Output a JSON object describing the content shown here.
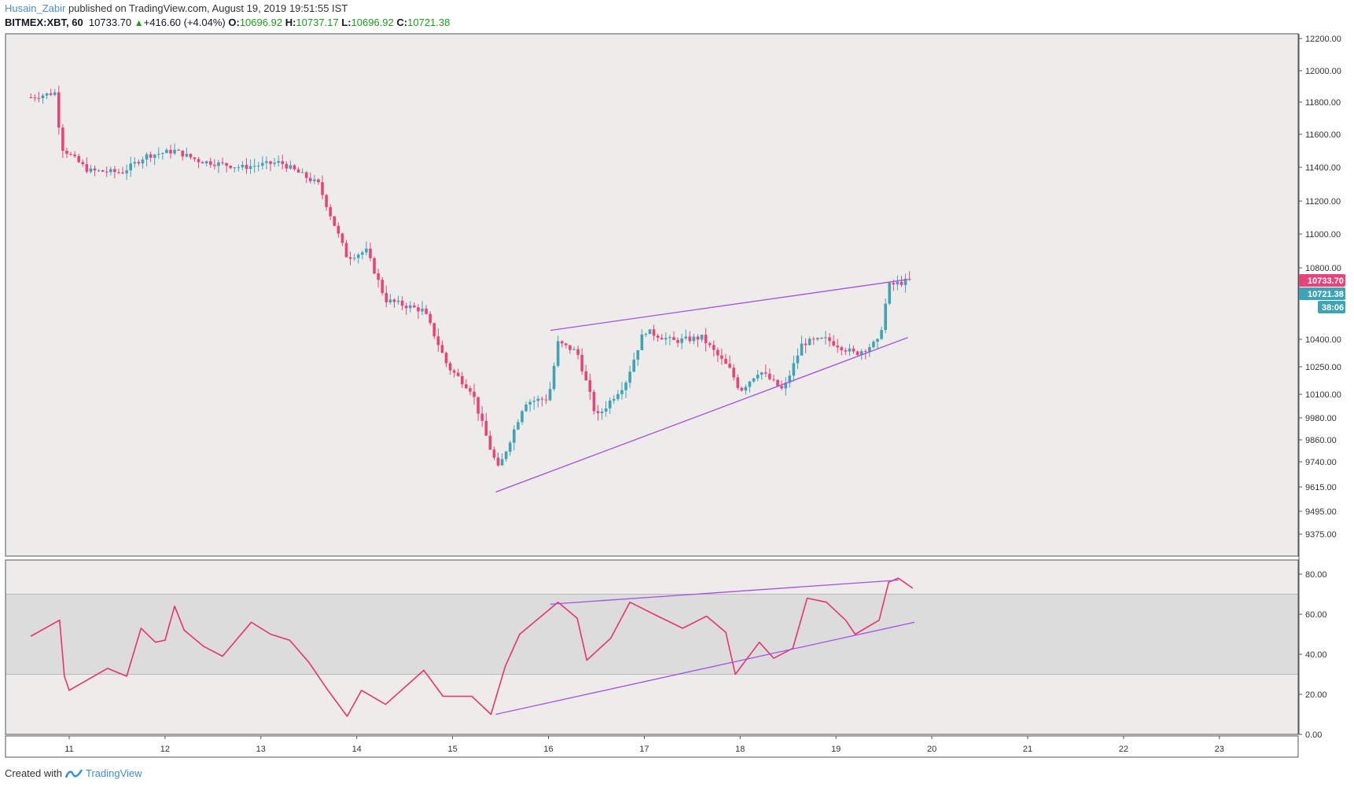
{
  "header": {
    "author": "Husain_Zabir",
    "published": " published on TradingView.com, August 19, 2019 19:51:55 IST",
    "symbol": "BITMEX:XBT, 60",
    "last": "10733.70",
    "change": "+416.60 (+4.04%)",
    "o_label": "O:",
    "o_value": "10696.92",
    "h_label": "H:",
    "h_value": "10737.17",
    "l_label": "L:",
    "l_value": "10696.92",
    "c_label": "C:",
    "c_value": "10721.38"
  },
  "footer": {
    "created_with": "Created with",
    "brand": "TradingView"
  },
  "badges": {
    "last_price": "10733.70",
    "close_price": "10721.38",
    "countdown": "38:06"
  },
  "colors": {
    "up": "#3ea3b5",
    "down": "#e8447a",
    "trendline": "#a550e6",
    "rsi_line": "#e8336f",
    "background": "#eeebeb",
    "rsi_band": "#dcdcdc",
    "badge_last": "#e8447a",
    "badge_close": "#3ea3b5"
  },
  "chart_data": [
    {
      "type": "candlestick",
      "name": "BITMEX:XBT, 60",
      "y_axis_ticks": [
        "12200.00",
        "12000.00",
        "11800.00",
        "11600.00",
        "11400.00",
        "11200.00",
        "11000.00",
        "10800.00",
        "10400.00",
        "10250.00",
        "10100.00",
        "9980.00",
        "9860.00",
        "9740.00",
        "9615.00",
        "9495.00",
        "9375.00"
      ],
      "ylim": [
        9255,
        12200
      ],
      "x_axis_ticks": [
        "11",
        "12",
        "13",
        "14",
        "15",
        "16",
        "17",
        "18",
        "19",
        "20",
        "21",
        "22",
        "23"
      ],
      "price_path_approx": [
        {
          "x": 10.6,
          "y": 11830
        },
        {
          "x": 10.85,
          "y": 11860
        },
        {
          "x": 10.92,
          "y": 11520
        },
        {
          "x": 11.2,
          "y": 11380
        },
        {
          "x": 11.55,
          "y": 11370
        },
        {
          "x": 11.8,
          "y": 11470
        },
        {
          "x": 12.1,
          "y": 11500
        },
        {
          "x": 12.35,
          "y": 11440
        },
        {
          "x": 12.8,
          "y": 11400
        },
        {
          "x": 13.2,
          "y": 11430
        },
        {
          "x": 13.6,
          "y": 11300
        },
        {
          "x": 13.9,
          "y": 10860
        },
        {
          "x": 14.1,
          "y": 10900
        },
        {
          "x": 14.3,
          "y": 10620
        },
        {
          "x": 14.7,
          "y": 10560
        },
        {
          "x": 14.95,
          "y": 10250
        },
        {
          "x": 15.2,
          "y": 10120
        },
        {
          "x": 15.4,
          "y": 9800
        },
        {
          "x": 15.48,
          "y": 9700
        },
        {
          "x": 15.75,
          "y": 10060
        },
        {
          "x": 16.0,
          "y": 10080
        },
        {
          "x": 16.1,
          "y": 10380
        },
        {
          "x": 16.3,
          "y": 10330
        },
        {
          "x": 16.5,
          "y": 9980
        },
        {
          "x": 16.8,
          "y": 10160
        },
        {
          "x": 17.0,
          "y": 10450
        },
        {
          "x": 17.3,
          "y": 10390
        },
        {
          "x": 17.6,
          "y": 10410
        },
        {
          "x": 17.9,
          "y": 10230
        },
        {
          "x": 18.0,
          "y": 10120
        },
        {
          "x": 18.2,
          "y": 10230
        },
        {
          "x": 18.45,
          "y": 10120
        },
        {
          "x": 18.65,
          "y": 10380
        },
        {
          "x": 18.9,
          "y": 10400
        },
        {
          "x": 19.2,
          "y": 10320
        },
        {
          "x": 19.45,
          "y": 10390
        },
        {
          "x": 19.55,
          "y": 10700
        },
        {
          "x": 19.8,
          "y": 10733.7
        }
      ],
      "trendlines": [
        {
          "from": {
            "x": 16.02,
            "y": 10450
          },
          "to": {
            "x": 19.75,
            "y": 10735
          }
        },
        {
          "from": {
            "x": 15.45,
            "y": 9590
          },
          "to": {
            "x": 19.75,
            "y": 10410
          }
        }
      ]
    },
    {
      "type": "line",
      "name": "RSI",
      "y_axis_ticks": [
        "80.00",
        "60.00",
        "40.00",
        "20.00",
        "0.00"
      ],
      "ylim": [
        0,
        85
      ],
      "band": [
        30,
        70
      ],
      "values_approx": [
        {
          "x": 10.6,
          "y": 49
        },
        {
          "x": 10.9,
          "y": 57
        },
        {
          "x": 10.95,
          "y": 29
        },
        {
          "x": 11.0,
          "y": 22
        },
        {
          "x": 11.4,
          "y": 33
        },
        {
          "x": 11.6,
          "y": 29
        },
        {
          "x": 11.75,
          "y": 53
        },
        {
          "x": 11.9,
          "y": 46
        },
        {
          "x": 12.0,
          "y": 47
        },
        {
          "x": 12.1,
          "y": 64
        },
        {
          "x": 12.2,
          "y": 52
        },
        {
          "x": 12.4,
          "y": 44
        },
        {
          "x": 12.6,
          "y": 39
        },
        {
          "x": 12.9,
          "y": 56
        },
        {
          "x": 13.1,
          "y": 50
        },
        {
          "x": 13.3,
          "y": 47
        },
        {
          "x": 13.5,
          "y": 36
        },
        {
          "x": 13.7,
          "y": 22
        },
        {
          "x": 13.9,
          "y": 9
        },
        {
          "x": 14.05,
          "y": 22
        },
        {
          "x": 14.3,
          "y": 15
        },
        {
          "x": 14.7,
          "y": 32
        },
        {
          "x": 14.9,
          "y": 19
        },
        {
          "x": 15.2,
          "y": 19
        },
        {
          "x": 15.4,
          "y": 10
        },
        {
          "x": 15.55,
          "y": 34
        },
        {
          "x": 15.7,
          "y": 50
        },
        {
          "x": 16.1,
          "y": 66
        },
        {
          "x": 16.3,
          "y": 58
        },
        {
          "x": 16.4,
          "y": 37
        },
        {
          "x": 16.65,
          "y": 48
        },
        {
          "x": 16.85,
          "y": 66
        },
        {
          "x": 17.1,
          "y": 60
        },
        {
          "x": 17.4,
          "y": 53
        },
        {
          "x": 17.65,
          "y": 59
        },
        {
          "x": 17.85,
          "y": 51
        },
        {
          "x": 17.95,
          "y": 30
        },
        {
          "x": 18.2,
          "y": 46
        },
        {
          "x": 18.35,
          "y": 38
        },
        {
          "x": 18.55,
          "y": 43
        },
        {
          "x": 18.7,
          "y": 68
        },
        {
          "x": 18.9,
          "y": 66
        },
        {
          "x": 19.1,
          "y": 57
        },
        {
          "x": 19.2,
          "y": 50
        },
        {
          "x": 19.45,
          "y": 57
        },
        {
          "x": 19.55,
          "y": 76
        },
        {
          "x": 19.65,
          "y": 78
        },
        {
          "x": 19.8,
          "y": 73
        }
      ],
      "trendlines": [
        {
          "from": {
            "x": 16.02,
            "y": 65
          },
          "to": {
            "x": 19.65,
            "y": 77
          }
        },
        {
          "from": {
            "x": 15.45,
            "y": 10
          },
          "to": {
            "x": 19.82,
            "y": 56
          }
        }
      ]
    }
  ]
}
